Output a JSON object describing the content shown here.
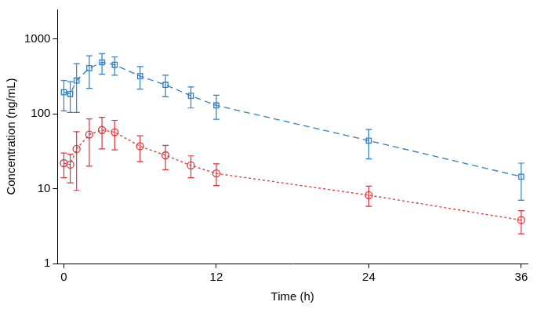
{
  "chart_data": {
    "type": "line",
    "x_label": "Time (h)",
    "y_label": "Concentration (ng/mL)",
    "log": "y",
    "grid": false,
    "xlim": [
      -0.5,
      36.5
    ],
    "xticks": [
      0,
      12,
      24,
      36
    ],
    "ylim": [
      1,
      2500
    ],
    "yticks": [
      1,
      10,
      100,
      1000
    ],
    "x": [
      0,
      0.5,
      1,
      2,
      3,
      4,
      6,
      8,
      10,
      12,
      24,
      36
    ],
    "series": [
      {
        "color": "#2f7fc1",
        "marker": "square",
        "line_style": "dashed",
        "values": [
          195,
          185,
          280,
          410,
          490,
          455,
          320,
          245,
          175,
          130,
          44,
          14.5
        ],
        "error_low": [
          110,
          105,
          105,
          220,
          340,
          330,
          215,
          170,
          120,
          85,
          25,
          7
        ],
        "error_high": [
          280,
          270,
          470,
          600,
          640,
          580,
          430,
          330,
          230,
          178,
          62,
          22
        ]
      },
      {
        "color": "#e0343a",
        "marker": "circle",
        "line_style": "dotted",
        "values": [
          22,
          21,
          34,
          53,
          61,
          57,
          37,
          28,
          20.5,
          16,
          8.2,
          3.8
        ],
        "error_low": [
          14,
          12,
          9.5,
          20,
          34,
          33,
          23,
          18,
          14,
          11,
          5.8,
          2.5
        ],
        "error_high": [
          30,
          29,
          58,
          86,
          90,
          82,
          51,
          38,
          27.5,
          21.5,
          10.8,
          5.1
        ]
      }
    ]
  }
}
